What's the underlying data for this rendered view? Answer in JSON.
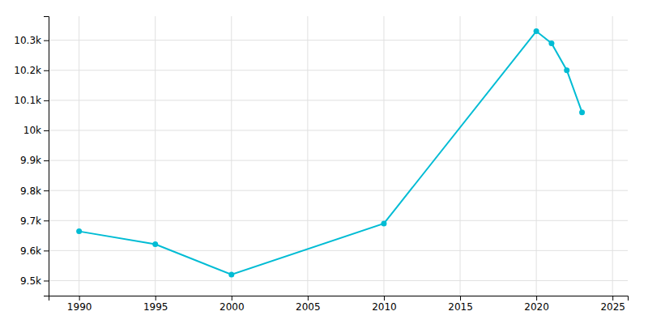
{
  "chart_data": {
    "type": "line",
    "x": [
      1990,
      1995,
      2000,
      2010,
      2020,
      2021,
      2022,
      2023
    ],
    "values": [
      9664,
      9621,
      9520,
      9690,
      10330,
      10290,
      10200,
      10060
    ],
    "color": "#00BCD4",
    "marker": "circle",
    "xlim": [
      1988,
      2026
    ],
    "ylim": [
      9450,
      10380
    ],
    "xticks": [
      1990,
      1995,
      2000,
      2005,
      2010,
      2015,
      2020,
      2025
    ],
    "yticks": [
      {
        "value": 9500,
        "label": "9.5k"
      },
      {
        "value": 9600,
        "label": "9.6k"
      },
      {
        "value": 9700,
        "label": "9.7k"
      },
      {
        "value": 9800,
        "label": "9.8k"
      },
      {
        "value": 9900,
        "label": "9.9k"
      },
      {
        "value": 10000,
        "label": "10k"
      },
      {
        "value": 10100,
        "label": "10.1k"
      },
      {
        "value": 10200,
        "label": "10.2k"
      },
      {
        "value": 10300,
        "label": "10.3k"
      }
    ],
    "grid": true
  }
}
